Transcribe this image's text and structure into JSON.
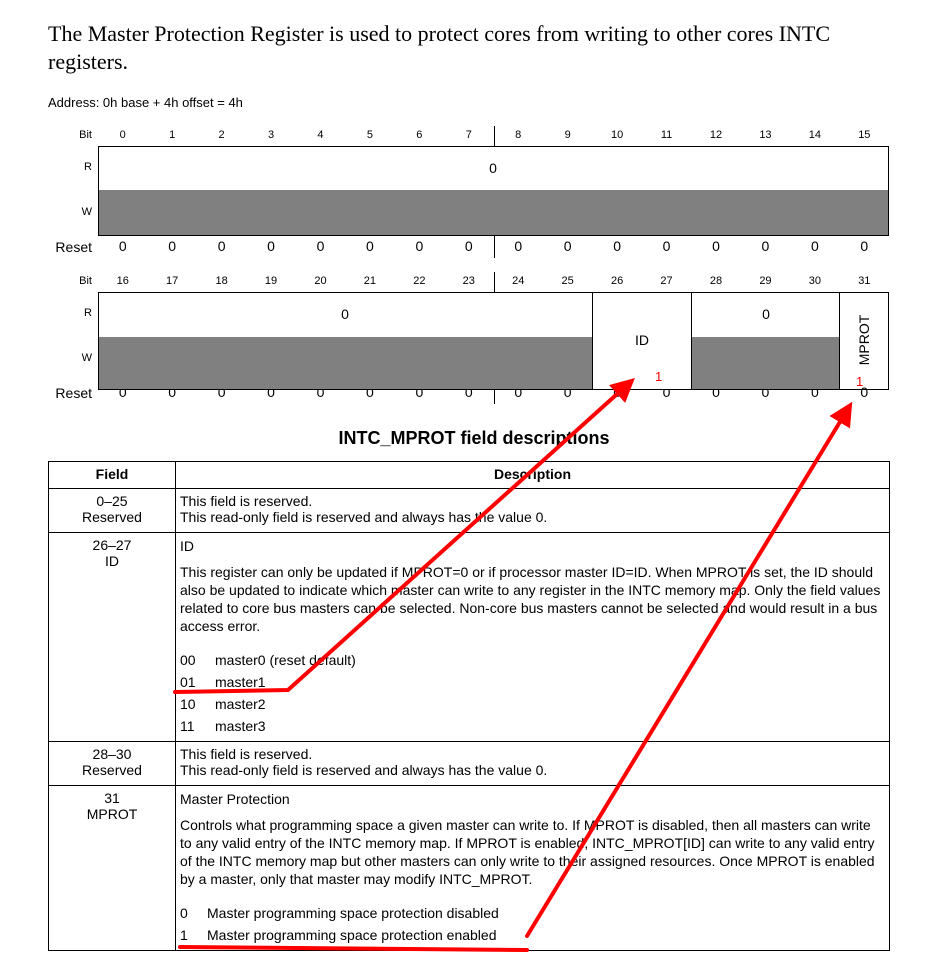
{
  "intro": "The Master Protection Register is used to protect cores from writing to other cores INTC registers.",
  "address": "Address: 0h base + 4h offset = 4h",
  "register": {
    "bit_label": "Bit",
    "r_label": "R",
    "w_label": "W",
    "reset_label": "Reset",
    "row1_bits": [
      "0",
      "1",
      "2",
      "3",
      "4",
      "5",
      "6",
      "7",
      "8",
      "9",
      "10",
      "11",
      "12",
      "13",
      "14",
      "15"
    ],
    "row2_bits": [
      "16",
      "17",
      "18",
      "19",
      "20",
      "21",
      "22",
      "23",
      "24",
      "25",
      "26",
      "27",
      "28",
      "29",
      "30",
      "31"
    ],
    "reset_values": [
      "0",
      "0",
      "0",
      "0",
      "0",
      "0",
      "0",
      "0",
      "0",
      "0",
      "0",
      "0",
      "0",
      "0",
      "0",
      "0"
    ],
    "row1_field": "0",
    "row2_reserved1": "0",
    "row2_id": "ID",
    "row2_reserved2": "0",
    "row2_mprot": "MPROT",
    "annotation_id": "1",
    "annotation_mprot": "1"
  },
  "table": {
    "title": "INTC_MPROT field descriptions",
    "headers": [
      "Field",
      "Description"
    ],
    "rows": [
      {
        "field": "0–25",
        "name": "Reserved",
        "desc": [
          "This field is reserved.",
          "This read-only field is reserved and always has the value 0."
        ]
      },
      {
        "field": "26–27",
        "name": "ID",
        "desc": [
          "ID",
          "This register can only be updated if MPROT=0 or if processor master ID=ID. When MPROT is set, the ID should also be updated to indicate which master can write to any register in the INTC memory map. Only the field values related to core bus masters can be selected. Non-core bus masters cannot be selected and would result in a bus access error."
        ],
        "enc": [
          [
            "00",
            "master0 (reset default)"
          ],
          [
            "01",
            "master1"
          ],
          [
            "10",
            "master2"
          ],
          [
            "11",
            "master3"
          ]
        ]
      },
      {
        "field": "28–30",
        "name": "Reserved",
        "desc": [
          "This field is reserved.",
          "This read-only field is reserved and always has the value 0."
        ]
      },
      {
        "field": "31",
        "name": "MPROT",
        "desc": [
          "Master Protection",
          "Controls what programming space a given master can write to. If MPROT is disabled, then all masters can write to any valid entry of the INTC memory map. If MPROT is enabled, INTC_MPROT[ID] can write to any valid entry of the INTC memory map but other masters can only write to their assigned resources. Once MPROT is enabled by a master, only that master may modify INTC_MPROT."
        ],
        "enc": [
          [
            "0",
            "Master programming space protection disabled"
          ],
          [
            "1",
            "Master programming space protection enabled"
          ]
        ]
      }
    ]
  },
  "colors": {
    "annotation": "#ff0000",
    "write_only_fill": "#808080"
  }
}
